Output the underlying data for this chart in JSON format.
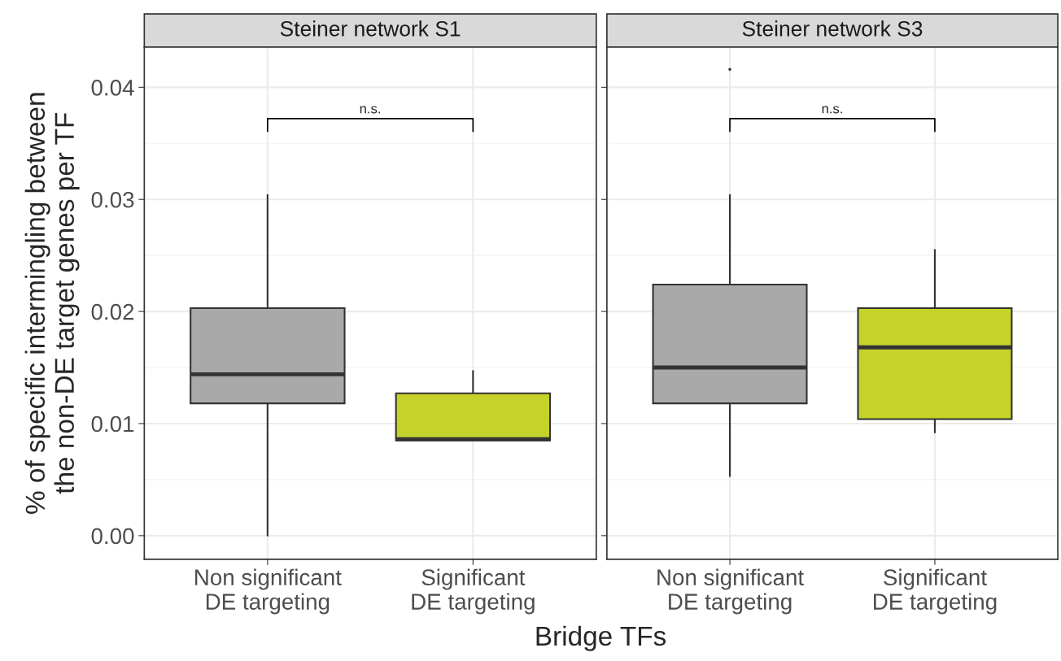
{
  "chart_data": [
    {
      "type": "box",
      "title": "Steiner network S1",
      "ylabel": "% of specific intermingling between\nthe non-DE target genes per TF",
      "xlabel": "Bridge TFs",
      "categories": [
        "Non significant\nDE targeting",
        "Significant\nDE targeting"
      ],
      "colors": [
        "#a9a9a9",
        "#c5d22a"
      ],
      "boxes": [
        {
          "low": 0.0,
          "q1": 0.0118,
          "median": 0.0144,
          "q3": 0.0203,
          "high": 0.0304
        },
        {
          "low": 0.0085,
          "q1": 0.0085,
          "median": 0.0086,
          "q3": 0.0127,
          "high": 0.0147
        }
      ],
      "ylim": [
        -0.0021,
        0.0436
      ],
      "yticks": [
        {
          "value": 0,
          "label": "0.00"
        },
        0.01,
        0.02,
        0.03,
        0.04
      ],
      "grid": true,
      "annotations": [
        "n.s."
      ]
    },
    {
      "type": "box",
      "title": "Steiner network S3",
      "categories": [
        "Non significant\nDE targeting",
        "Significant\nDE targeting"
      ],
      "colors": [
        "#a9a9a9",
        "#c5d22a"
      ],
      "boxes": [
        {
          "low": 0.0053,
          "q1": 0.0118,
          "median": 0.015,
          "q3": 0.0224,
          "high": 0.0304,
          "outliers": [
            0.0416
          ]
        },
        {
          "low": 0.0092,
          "q1": 0.0104,
          "median": 0.0168,
          "q3": 0.0203,
          "high": 0.0255
        }
      ],
      "ylim": [
        -0.0021,
        0.0436
      ],
      "yticks": [
        0,
        0.01,
        0.02,
        0.03,
        0.04
      ],
      "grid": true,
      "tick_labels": "x",
      "annotations": [
        "n.s."
      ]
    }
  ]
}
